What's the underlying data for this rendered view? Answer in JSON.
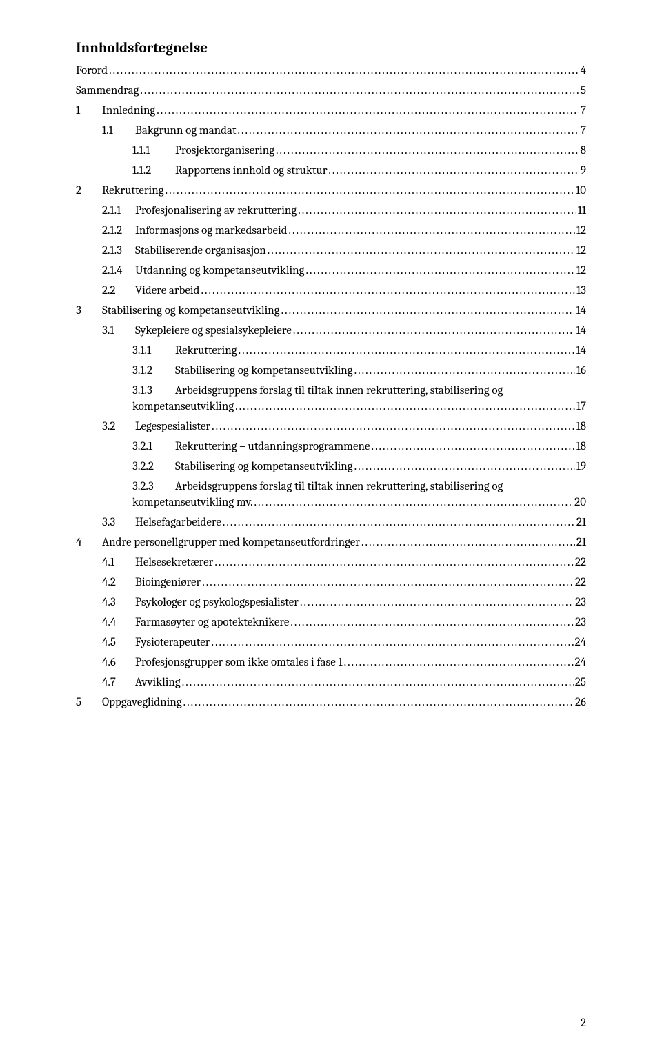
{
  "title": "Innholdsfortegnelse",
  "footer_page": "2",
  "font": {
    "family": "Cambria",
    "title_size": 21,
    "body_size": 17
  },
  "colors": {
    "text": "#000000",
    "background": "#ffffff"
  },
  "toc": [
    {
      "level": 0,
      "num": "",
      "text": "Forord",
      "page": "4"
    },
    {
      "level": 0,
      "num": "",
      "text": "Sammendrag",
      "page": "5"
    },
    {
      "level": 1,
      "num": "1",
      "text": "Innledning",
      "page": "7"
    },
    {
      "level": 2,
      "num": "1.1",
      "text": "Bakgrunn og mandat",
      "page": "7"
    },
    {
      "level": 3,
      "num": "1.1.1",
      "text": "Prosjektorganisering",
      "page": "8"
    },
    {
      "level": 3,
      "num": "1.1.2",
      "text": "Rapportens innhold og struktur",
      "page": "9"
    },
    {
      "level": 1,
      "num": "2",
      "text": "Rekruttering",
      "page": "10"
    },
    {
      "level": 2,
      "num": "2.1.1",
      "text": "Profesjonalisering av rekruttering",
      "page": "11"
    },
    {
      "level": 2,
      "num": "2.1.2",
      "text": "Informasjons og markedsarbeid",
      "page": "12"
    },
    {
      "level": 2,
      "num": "2.1.3",
      "text": "Stabiliserende organisasjon",
      "page": "12"
    },
    {
      "level": 2,
      "num": "2.1.4",
      "text": "Utdanning og kompetanseutvikling",
      "page": "12"
    },
    {
      "level": 2,
      "num": "2.2",
      "text": "Videre arbeid",
      "page": "13"
    },
    {
      "level": 1,
      "num": "3",
      "text": "Stabilisering og kompetanseutvikling",
      "page": "14"
    },
    {
      "level": 2,
      "num": "3.1",
      "text": "Sykepleiere og spesialsykepleiere",
      "page": "14"
    },
    {
      "level": 3,
      "num": "3.1.1",
      "text": "Rekruttering",
      "page": "14"
    },
    {
      "level": 3,
      "num": "3.1.2",
      "text": "Stabilisering og kompetanseutvikling",
      "page": "16"
    },
    {
      "level": 3,
      "num": "3.1.3",
      "text": "Arbeidsgruppens forslag til tiltak innen rekruttering, stabilisering og",
      "text2": "kompetanseutvikling",
      "page": "17",
      "multiline": true
    },
    {
      "level": 2,
      "num": "3.2",
      "text": "Legespesialister",
      "page": "18"
    },
    {
      "level": 3,
      "num": "3.2.1",
      "text": "Rekruttering – utdanningsprogrammene",
      "page": "18"
    },
    {
      "level": 3,
      "num": "3.2.2",
      "text": "Stabilisering og kompetanseutvikling",
      "page": "19"
    },
    {
      "level": 3,
      "num": "3.2.3",
      "text": "Arbeidsgruppens forslag til tiltak innen rekruttering, stabilisering og",
      "text2": "kompetanseutvikling mv.",
      "page": "20",
      "multiline": true
    },
    {
      "level": 2,
      "num": "3.3",
      "text": "Helsefagarbeidere",
      "page": "21"
    },
    {
      "level": 1,
      "num": "4",
      "text": "Andre personellgrupper med kompetanseutfordringer",
      "page": "21"
    },
    {
      "level": 2,
      "num": "4.1",
      "text": "Helsesekretærer",
      "page": "22"
    },
    {
      "level": 2,
      "num": "4.2",
      "text": "Bioingeniører",
      "page": "22"
    },
    {
      "level": 2,
      "num": "4.3",
      "text": "Psykologer og psykologspesialister",
      "page": "23"
    },
    {
      "level": 2,
      "num": "4.4",
      "text": "Farmasøyter og apotekteknikere",
      "page": "23"
    },
    {
      "level": 2,
      "num": "4.5",
      "text": "Fysioterapeuter",
      "page": "24"
    },
    {
      "level": 2,
      "num": "4.6",
      "text": "Profesjonsgrupper som ikke omtales i fase 1",
      "page": "24"
    },
    {
      "level": 2,
      "num": "4.7",
      "text": "Avvikling",
      "page": "25"
    },
    {
      "level": 1,
      "num": "5",
      "text": "Oppgaveglidning",
      "page": "26"
    }
  ]
}
